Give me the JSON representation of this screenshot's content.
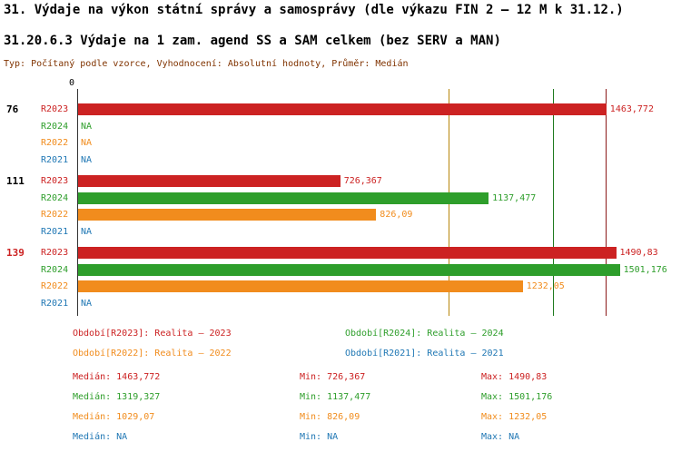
{
  "chart_data": {
    "type": "bar",
    "orientation": "horizontal",
    "title": "31. Výdaje na výkon státní správy a samosprávy (dle výkazu FIN 2 – 12 M k 31.12.)",
    "subtitle": "31.20.6.3 Výdaje na 1 zam. agend SS a SAM celkem (bez SERV a MAN)",
    "meta": "Typ: Počítaný podle vzorce, Vyhodnocení: Absolutní hodnoty, Průměr: Medián",
    "value_axis": {
      "origin_label": "0",
      "xlim": [
        0,
        1560
      ]
    },
    "series_colors": {
      "R2023": "#cc2222",
      "R2024": "#2e9e2b",
      "R2022": "#f18c1d",
      "R2021": "#1f77b4"
    },
    "median_line_colors": {
      "R2023": "#8b1a1a",
      "R2024": "#1e7a1e",
      "R2022": "#b8860b"
    },
    "groups": [
      {
        "label": "76",
        "label_color": "#000000",
        "rows": [
          {
            "series": "R2023",
            "value": 1463.772,
            "display": "1463,772"
          },
          {
            "series": "R2024",
            "value": null,
            "display": "NA"
          },
          {
            "series": "R2022",
            "value": null,
            "display": "NA"
          },
          {
            "series": "R2021",
            "value": null,
            "display": "NA"
          }
        ]
      },
      {
        "label": "111",
        "label_color": "#000000",
        "rows": [
          {
            "series": "R2023",
            "value": 726.367,
            "display": "726,367"
          },
          {
            "series": "R2024",
            "value": 1137.477,
            "display": "1137,477"
          },
          {
            "series": "R2022",
            "value": 826.09,
            "display": "826,09"
          },
          {
            "series": "R2021",
            "value": null,
            "display": "NA"
          }
        ]
      },
      {
        "label": "139",
        "label_color": "#cc2222",
        "rows": [
          {
            "series": "R2023",
            "value": 1490.83,
            "display": "1490,83"
          },
          {
            "series": "R2024",
            "value": 1501.176,
            "display": "1501,176"
          },
          {
            "series": "R2022",
            "value": 1232.05,
            "display": "1232,05"
          },
          {
            "series": "R2021",
            "value": null,
            "display": "NA"
          }
        ]
      }
    ],
    "median_lines": [
      {
        "series": "R2022",
        "value": 1029.07
      },
      {
        "series": "R2024",
        "value": 1319.327
      },
      {
        "series": "R2023",
        "value": 1463.772
      }
    ],
    "legend": [
      {
        "series": "R2023",
        "text": "Období[R2023]: Realita – 2023"
      },
      {
        "series": "R2024",
        "text": "Období[R2024]: Realita – 2024"
      },
      {
        "series": "R2022",
        "text": "Období[R2022]: Realita – 2022"
      },
      {
        "series": "R2021",
        "text": "Období[R2021]: Realita – 2021"
      }
    ],
    "stats": [
      {
        "series": "R2023",
        "median": "Medián: 1463,772",
        "min": "Min: 726,367",
        "max": "Max: 1490,83"
      },
      {
        "series": "R2024",
        "median": "Medián: 1319,327",
        "min": "Min: 1137,477",
        "max": "Max: 1501,176"
      },
      {
        "series": "R2022",
        "median": "Medián: 1029,07",
        "min": "Min: 826,09",
        "max": "Max: 1232,05"
      },
      {
        "series": "R2021",
        "median": "Medián: NA",
        "min": "Min: NA",
        "max": "Max: NA"
      }
    ]
  }
}
